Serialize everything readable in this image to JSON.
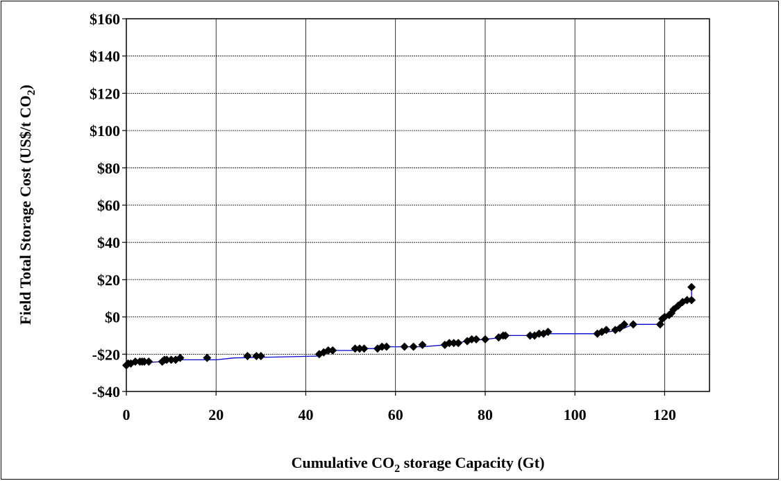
{
  "chart_data": {
    "type": "line",
    "title": "",
    "xlabel": {
      "pre": "Cumulative CO",
      "sub": "2",
      "post": " storage Capacity (Gt)"
    },
    "ylabel": {
      "pre": "Field Total Storage Cost (US$/t CO",
      "sub": "2",
      "post": ")"
    },
    "xlim": [
      0,
      130
    ],
    "ylim": [
      -40,
      160
    ],
    "x_ticks": [
      0,
      20,
      40,
      60,
      80,
      100,
      120
    ],
    "x_tick_labels": [
      "0",
      "20",
      "40",
      "60",
      "80",
      "100",
      "120"
    ],
    "y_ticks": [
      -40,
      -20,
      0,
      20,
      40,
      60,
      80,
      100,
      120,
      140,
      160
    ],
    "y_tick_labels": [
      "-$40",
      "-$20",
      "$0",
      "$20",
      "$40",
      "$60",
      "$80",
      "$100",
      "$120",
      "$140",
      "$160"
    ],
    "grid": true,
    "colors": {
      "line": "#0000cc",
      "marker": "#000000",
      "grid": "#000000"
    },
    "series": [
      {
        "line": [
          [
            0,
            -26
          ],
          [
            1,
            -25
          ],
          [
            8,
            -24
          ],
          [
            12,
            -23
          ],
          [
            20,
            -23
          ],
          [
            24,
            -22
          ],
          [
            43,
            -21
          ],
          [
            45,
            -19
          ],
          [
            46,
            -18
          ],
          [
            51,
            -18
          ],
          [
            52,
            -17
          ],
          [
            56,
            -17
          ],
          [
            57,
            -16
          ],
          [
            62,
            -16
          ],
          [
            66,
            -16
          ],
          [
            71,
            -15
          ],
          [
            76,
            -13
          ],
          [
            80,
            -12
          ],
          [
            84,
            -11
          ],
          [
            85,
            -10
          ],
          [
            90,
            -10
          ],
          [
            94,
            -9
          ],
          [
            105,
            -9
          ],
          [
            110,
            -7
          ],
          [
            113,
            -4
          ],
          [
            119,
            -4
          ],
          [
            120,
            0
          ],
          [
            121,
            2
          ],
          [
            122,
            4
          ],
          [
            123,
            6
          ],
          [
            124,
            8
          ],
          [
            125,
            9
          ],
          [
            126,
            9
          ],
          [
            126,
            16
          ]
        ],
        "points": [
          [
            0,
            -26
          ],
          [
            0.4,
            -25
          ],
          [
            1,
            -25
          ],
          [
            2,
            -24
          ],
          [
            3,
            -24
          ],
          [
            3.5,
            -24
          ],
          [
            4,
            -24
          ],
          [
            5,
            -24
          ],
          [
            8,
            -24
          ],
          [
            8.5,
            -23
          ],
          [
            9,
            -23
          ],
          [
            10,
            -23
          ],
          [
            11,
            -23
          ],
          [
            12,
            -22
          ],
          [
            18,
            -22
          ],
          [
            27,
            -21
          ],
          [
            29,
            -21
          ],
          [
            30,
            -21
          ],
          [
            43,
            -20
          ],
          [
            44,
            -19
          ],
          [
            45,
            -18
          ],
          [
            46,
            -18
          ],
          [
            51,
            -17
          ],
          [
            52,
            -17
          ],
          [
            53,
            -17
          ],
          [
            56,
            -17
          ],
          [
            57,
            -16
          ],
          [
            58,
            -16
          ],
          [
            62,
            -16
          ],
          [
            64,
            -16
          ],
          [
            66,
            -15
          ],
          [
            71,
            -15
          ],
          [
            72,
            -14
          ],
          [
            73,
            -14
          ],
          [
            74,
            -14
          ],
          [
            76,
            -13
          ],
          [
            77,
            -12
          ],
          [
            78,
            -12
          ],
          [
            80,
            -12
          ],
          [
            83,
            -11
          ],
          [
            84,
            -10
          ],
          [
            84.5,
            -10
          ],
          [
            90,
            -10
          ],
          [
            91,
            -10
          ],
          [
            92,
            -9
          ],
          [
            93,
            -9
          ],
          [
            94,
            -8
          ],
          [
            105,
            -9
          ],
          [
            106,
            -8
          ],
          [
            107,
            -7
          ],
          [
            109,
            -7
          ],
          [
            110,
            -6
          ],
          [
            111,
            -4
          ],
          [
            113,
            -4
          ],
          [
            119,
            -4
          ],
          [
            119.5,
            -1
          ],
          [
            120,
            0
          ],
          [
            121,
            1
          ],
          [
            121.5,
            2
          ],
          [
            122,
            4
          ],
          [
            123,
            6
          ],
          [
            124,
            8
          ],
          [
            125,
            9
          ],
          [
            126,
            9
          ],
          [
            126,
            16
          ]
        ]
      }
    ]
  }
}
